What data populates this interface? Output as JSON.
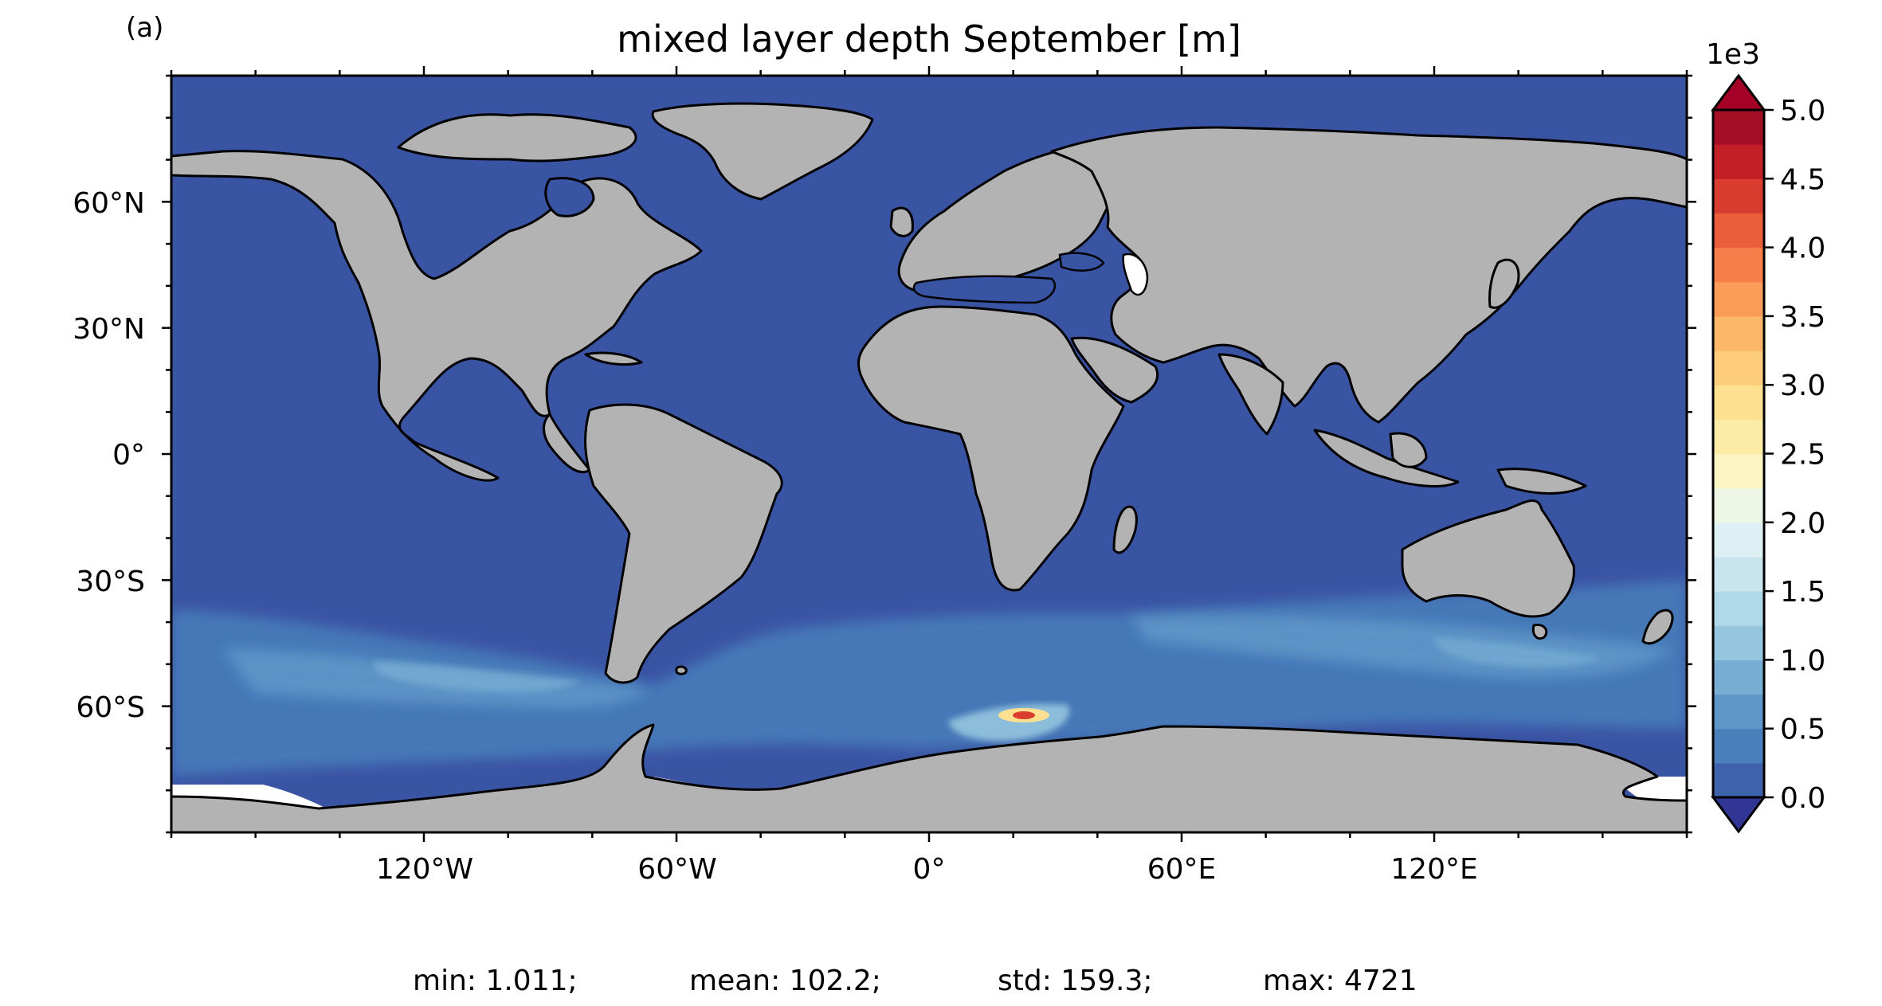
{
  "panel_label": "(a)",
  "title": "mixed layer depth September [m]",
  "colorbar": {
    "multiplier_label": "1e3",
    "tick_labels": [
      "5.0",
      "4.5",
      "4.0",
      "3.5",
      "3.0",
      "2.5",
      "2.0",
      "1.5",
      "1.0",
      "0.5",
      "0.0"
    ],
    "min": 0,
    "max": 5000,
    "levels": 20,
    "extend": "both",
    "colors": [
      "#3b4aa0",
      "#3f62ad",
      "#4a7fbc",
      "#5f97c8",
      "#79aed4",
      "#94c6df",
      "#afd8e8",
      "#c8e5ef",
      "#def0f3",
      "#eef6e6",
      "#fbf6c4",
      "#fdeca6",
      "#fde090",
      "#fdcd7c",
      "#fdb768",
      "#fb9c58",
      "#f67e4b",
      "#ea5e3c",
      "#d93d2f",
      "#c22026",
      "#a50f26"
    ],
    "under_color": "#313695",
    "over_color": "#a50026"
  },
  "map": {
    "projection": "PlateCarree",
    "ocean_base_color": "#3a54a4",
    "land_color": "#b3b3b3",
    "ice_color": "#ffffff",
    "coastline_color": "#000000",
    "lon_range": [
      -180,
      180
    ],
    "lat_range": [
      -90,
      90
    ]
  },
  "axes": {
    "x_tick_labels": [
      "120°W",
      "60°W",
      "0°",
      "60°E",
      "120°E"
    ],
    "y_tick_labels": [
      "60°N",
      "30°N",
      "0°",
      "30°S",
      "60°S"
    ]
  },
  "stats": {
    "min": "min: 1.011;",
    "mean": "mean: 102.2;",
    "std": "std: 159.3;",
    "max": "max: 4721"
  }
}
